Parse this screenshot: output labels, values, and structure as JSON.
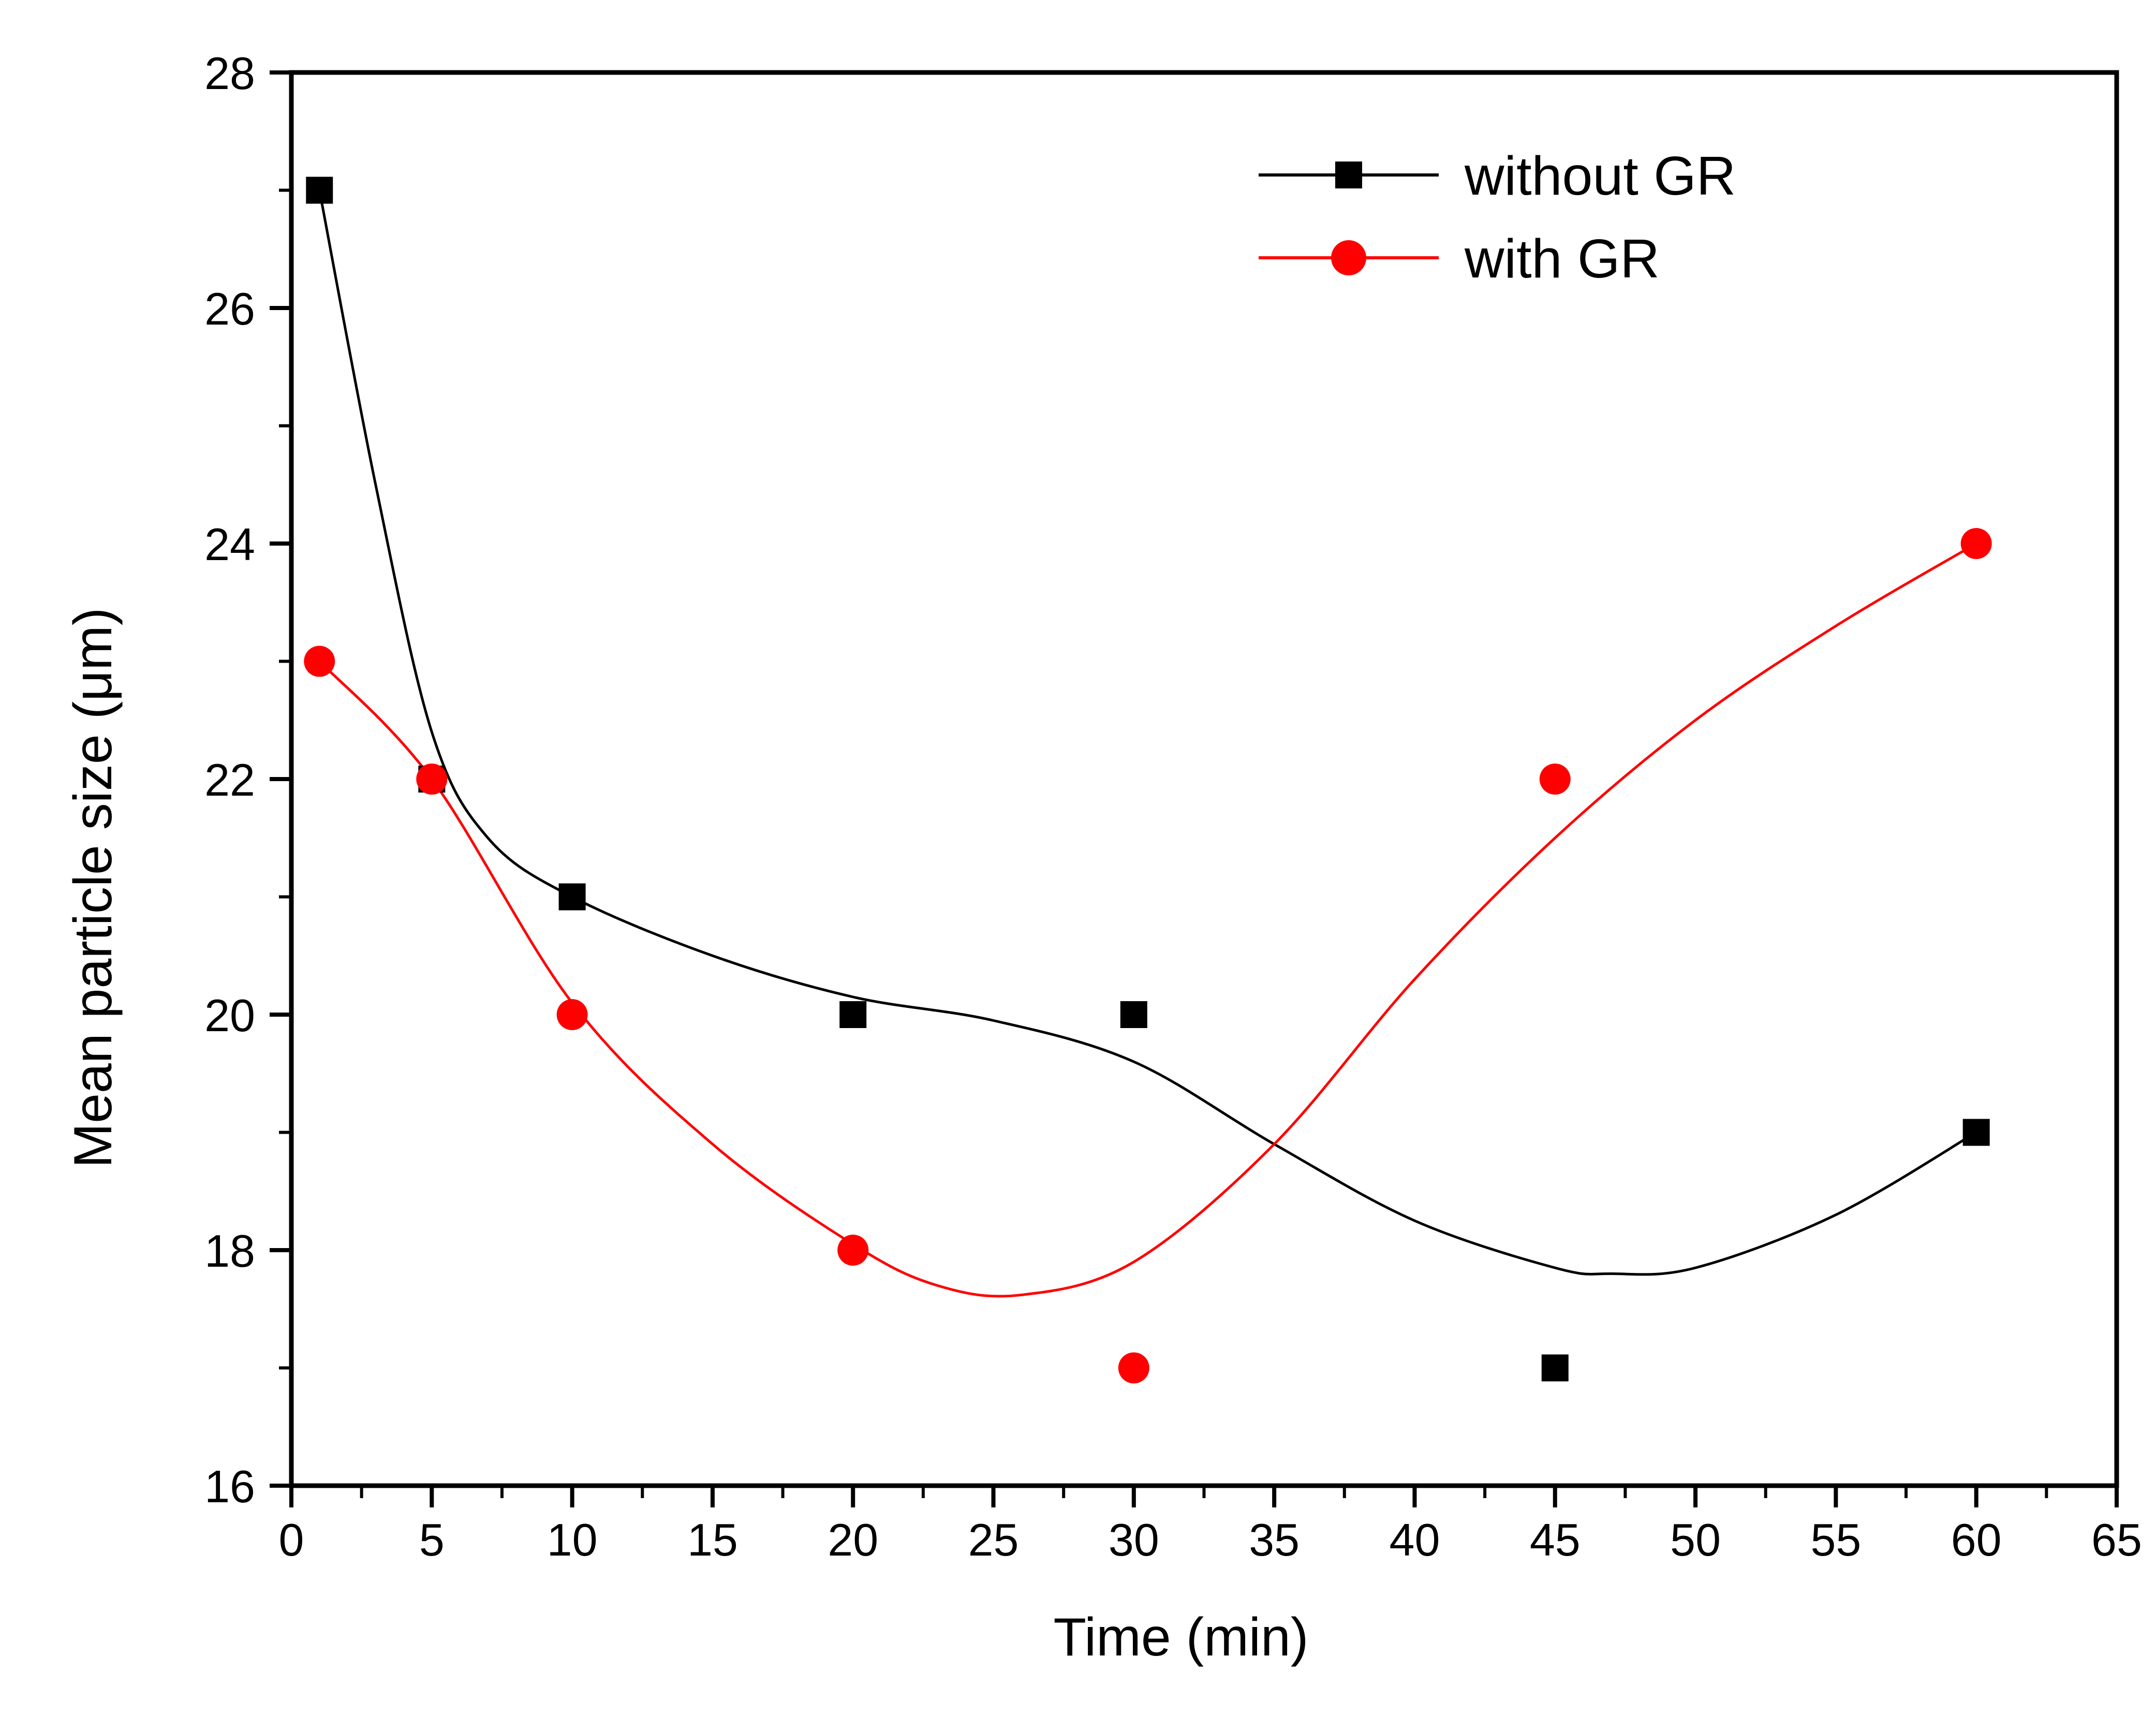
{
  "chart_data": {
    "type": "line",
    "title": "",
    "xlabel": "Time (min)",
    "ylabel": "Mean particle size (μm)",
    "xlim": [
      0,
      65
    ],
    "ylim": [
      16,
      28
    ],
    "x_ticks": [
      0,
      5,
      10,
      15,
      20,
      25,
      30,
      35,
      40,
      45,
      50,
      55,
      60,
      65
    ],
    "y_ticks": [
      16,
      18,
      20,
      22,
      24,
      26,
      28
    ],
    "grid": false,
    "legend_position": "top-right",
    "series": [
      {
        "name": "without GR",
        "color": "#000000",
        "marker": "square",
        "x": [
          1,
          5,
          10,
          20,
          30,
          45,
          60
        ],
        "y": [
          27,
          22,
          21,
          20,
          20,
          17,
          19
        ],
        "fit_curve": {
          "x": [
            1,
            3,
            5,
            7,
            10,
            15,
            20,
            25,
            30,
            35,
            40,
            45,
            47,
            50,
            55,
            60
          ],
          "y": [
            27,
            24.5,
            22.4,
            21.5,
            21,
            20.5,
            20.15,
            19.95,
            19.6,
            18.9,
            18.25,
            17.85,
            17.8,
            17.85,
            18.3,
            19
          ]
        }
      },
      {
        "name": "with GR",
        "color": "#ff0000",
        "marker": "circle",
        "x": [
          1,
          5,
          10,
          20,
          30,
          45,
          60
        ],
        "y": [
          23,
          22,
          20,
          18,
          17,
          22,
          24
        ],
        "fit_curve": {
          "x": [
            1,
            5,
            10,
            15,
            20,
            23,
            26,
            30,
            35,
            40,
            45,
            50,
            55,
            60
          ],
          "y": [
            23,
            22,
            20.1,
            18.9,
            18.05,
            17.7,
            17.62,
            17.9,
            18.9,
            20.3,
            21.5,
            22.5,
            23.3,
            24
          ]
        }
      }
    ]
  }
}
